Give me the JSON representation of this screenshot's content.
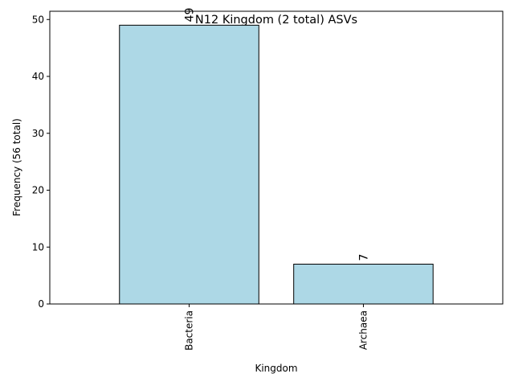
{
  "chart_data": {
    "type": "bar",
    "title": "N12 Kingdom (2 total) ASVs",
    "xlabel": "Kingdom",
    "ylabel": "Frequency (56 total)",
    "categories": [
      "Bacteria",
      "Archaea"
    ],
    "values": [
      49,
      7
    ],
    "data_labels": [
      "49",
      "7"
    ],
    "ylim": [
      0,
      51.45
    ],
    "yticks": [
      0,
      10,
      20,
      30,
      40,
      50
    ],
    "ytick_labels": [
      "0",
      "10",
      "20",
      "30",
      "40",
      "50"
    ],
    "grid": false,
    "legend": "none",
    "colors": {
      "bar_fill": "#add8e6",
      "bar_edge": "#000000"
    }
  }
}
